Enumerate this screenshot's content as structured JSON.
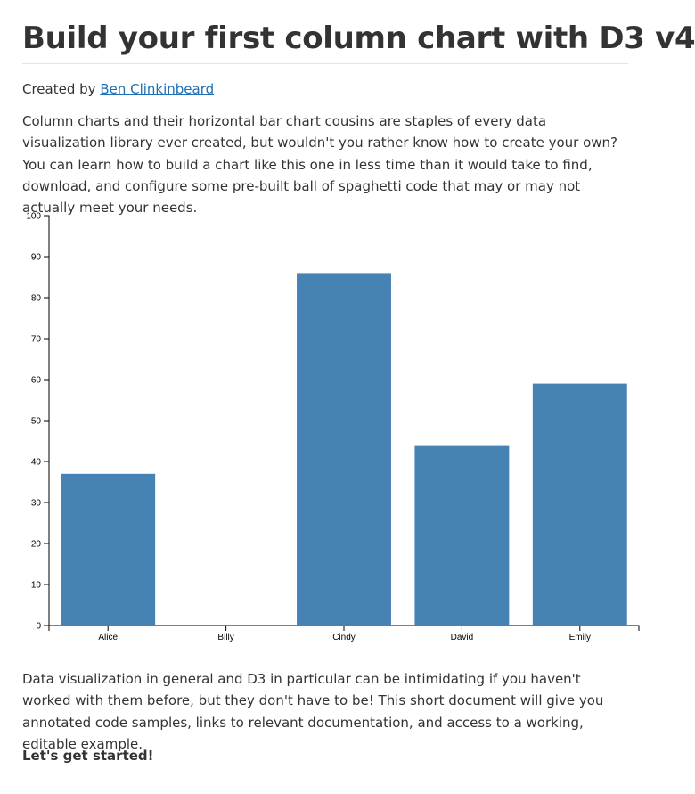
{
  "header": {
    "title": "Build your first column chart with D3 v4"
  },
  "byline": {
    "prefix": "Created by ",
    "author": "Ben Clinkinbeard"
  },
  "intro": "Column charts and their horizontal bar chart cousins are staples of every data visualization library ever created, but wouldn't you rather know how to create your own? You can learn how to build a chart like this one in less time than it would take to find, download, and configure some pre-built ball of spaghetti code that may or may not actually meet your needs.",
  "outro": "Data visualization in general and D3 in particular can be intimidating if you haven't worked with them before, but they don't have to be! This short document will give you annotated code samples, links to relevant documentation, and access to a working, editable example.",
  "cta": "Let's get started!",
  "colors": {
    "bar": "#4682b4",
    "link": "#1f6fb6"
  },
  "chart_data": {
    "type": "bar",
    "categories": [
      "Alice",
      "Billy",
      "Cindy",
      "David",
      "Emily"
    ],
    "values": [
      37,
      0,
      86,
      44,
      59
    ],
    "ylim": [
      0,
      100
    ],
    "yticks": [
      "0",
      "10",
      "20",
      "30",
      "40",
      "50",
      "60",
      "70",
      "80",
      "90",
      "100"
    ],
    "grid": false,
    "title": "",
    "xlabel": "",
    "ylabel": ""
  }
}
